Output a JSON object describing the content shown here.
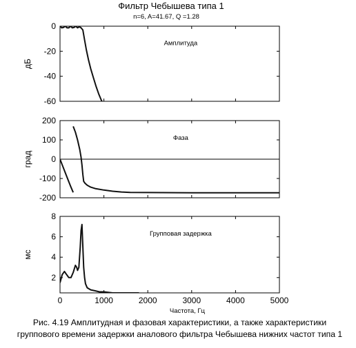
{
  "figure": {
    "title": "Фильтр Чебышева типа 1",
    "subtitle": "n=6, A=41.67, Q =1.28",
    "caption_lines": [
      "Рис. 4.19 Амплитудная и фазовая характеристики, а также характеристики",
      "группового времени задержки аналового фильтра Чебышева нижних частот типа 1"
    ]
  },
  "chart_data": [
    {
      "type": "line",
      "title": "Амплитуда",
      "ylabel": "дБ",
      "xlabel": "",
      "xlim": [
        0,
        5000
      ],
      "ylim": [
        -60,
        0
      ],
      "yticks": [
        0,
        -20,
        -40,
        -60
      ],
      "grid": false,
      "series": [
        {
          "x": [
            0,
            40,
            80,
            120,
            160,
            200,
            240,
            280,
            320,
            360,
            400,
            440,
            480,
            520,
            560,
            600,
            650,
            700,
            760,
            820,
            880,
            940,
            1000
          ],
          "y": [
            0,
            -1.3,
            -1.0,
            0,
            -1.3,
            -1.3,
            0,
            -1.3,
            -1.0,
            0,
            -1.3,
            -0.5,
            -1.3,
            -3,
            -11,
            -19,
            -27,
            -34,
            -41,
            -48,
            -54,
            -59,
            -63
          ]
        }
      ]
    },
    {
      "type": "line",
      "title": "Фаза",
      "ylabel": "град",
      "xlabel": "",
      "xlim": [
        0,
        5000
      ],
      "ylim": [
        -200,
        200
      ],
      "yticks": [
        200,
        100,
        0,
        -100,
        -200
      ],
      "grid": false,
      "zero_line": true,
      "series": [
        {
          "x": [
            0,
            60,
            120,
            180,
            240,
            300
          ],
          "y": [
            0,
            -35,
            -70,
            -105,
            -140,
            -172
          ]
        },
        {
          "x": [
            300,
            350,
            400,
            450,
            480,
            500,
            520,
            540,
            570,
            620,
            700,
            800,
            1000,
            1200,
            1400,
            1600,
            2000,
            3000,
            4000,
            5000
          ],
          "y": [
            170,
            140,
            100,
            50,
            10,
            -30,
            -80,
            -115,
            -125,
            -135,
            -145,
            -152,
            -160,
            -166,
            -170,
            -172,
            -173,
            -174,
            -174,
            -174
          ]
        }
      ]
    },
    {
      "type": "line",
      "title": "Групповая задержка",
      "ylabel": "мс",
      "xlabel": "Частота, Гц",
      "xlim": [
        0,
        5000
      ],
      "ylim": [
        0.5,
        8
      ],
      "yticks": [
        8,
        6,
        4,
        2
      ],
      "xticks": [
        0,
        1000,
        2000,
        3000,
        4000,
        5000
      ],
      "grid": false,
      "series": [
        {
          "x": [
            0,
            50,
            100,
            150,
            200,
            250,
            300,
            350,
            380,
            400,
            430,
            460,
            480,
            500,
            520,
            540,
            560,
            580,
            620,
            700,
            800,
            900,
            1000,
            1200,
            1500,
            1800
          ],
          "y": [
            1.5,
            2.3,
            2.6,
            2.3,
            2.0,
            2.0,
            2.5,
            3.2,
            3.0,
            2.7,
            3.0,
            5.0,
            6.6,
            7.2,
            5.0,
            3.0,
            2.0,
            1.4,
            1.0,
            0.8,
            0.7,
            0.6,
            0.6,
            0.5,
            0.5,
            0.5
          ]
        }
      ]
    }
  ]
}
